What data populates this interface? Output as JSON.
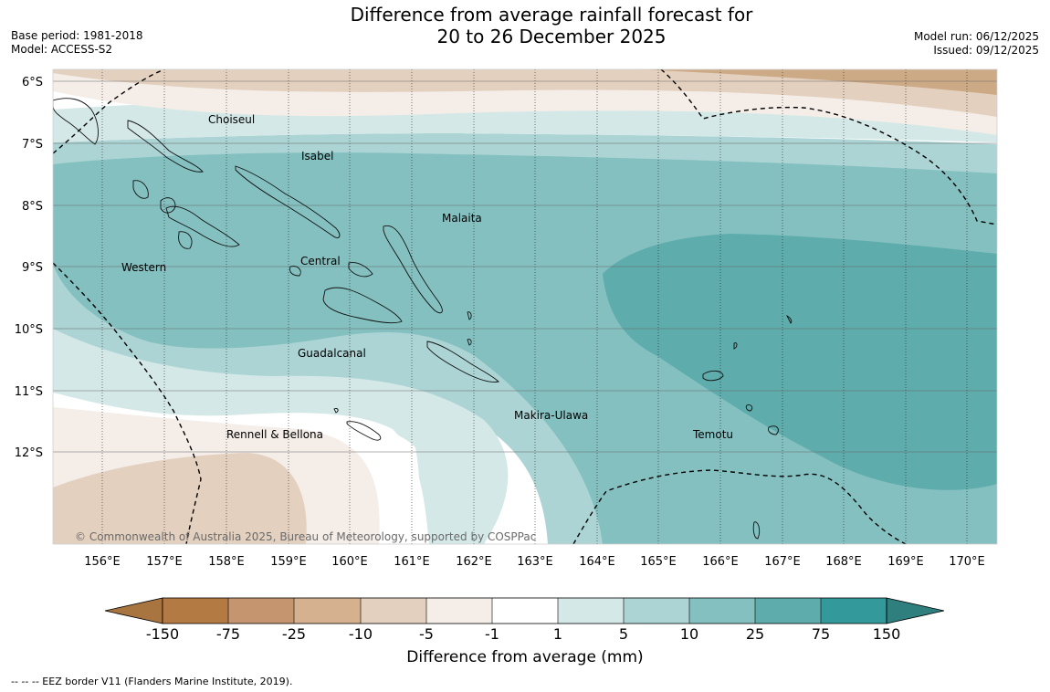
{
  "title": {
    "line1": "Difference from average rainfall forecast for",
    "line2": "20 to 26 December 2025"
  },
  "meta_left": {
    "base_period": "Base period: 1981-2018",
    "model": "Model: ACCESS-S2"
  },
  "meta_right": {
    "model_run": "Model run: 06/12/2025",
    "issued": "Issued: 09/12/2025"
  },
  "map": {
    "lat_labels": [
      "6°S",
      "7°S",
      "8°S",
      "9°S",
      "10°S",
      "11°S",
      "12°S"
    ],
    "lon_labels": [
      "156°E",
      "157°E",
      "158°E",
      "159°E",
      "160°E",
      "161°E",
      "162°E",
      "163°E",
      "164°E",
      "165°E",
      "166°E",
      "167°E",
      "168°E",
      "169°E",
      "170°E"
    ],
    "regions": [
      "Choiseul",
      "Isabel",
      "Malaita",
      "Western",
      "Central",
      "Guadalcanal",
      "Makira-Ulawa",
      "Rennell & Bellona",
      "Temotu"
    ],
    "copyright": "© Commonwealth of Australia 2025, Bureau of Meteorology, supported by COSPPac"
  },
  "legend": {
    "ticks": [
      "-150",
      "-75",
      "-25",
      "-10",
      "-5",
      "-1",
      "1",
      "5",
      "10",
      "25",
      "75",
      "150"
    ],
    "colors": [
      "#a87540",
      "#b47a44",
      "#c4956e",
      "#d5b18f",
      "#e3d0bf",
      "#f4ede8",
      "#ffffff",
      "#d5e8e8",
      "#acd4d4",
      "#84c0c0",
      "#5eacac",
      "#33999a",
      "#2e7f7d"
    ],
    "label": "Difference from average (mm)"
  },
  "footnote": "--  --  -- EEZ border V11 (Flanders Marine Institute, 2019).",
  "colors": {
    "dry_strong": "#cdaa86",
    "dry_mid": "#e3d0bf",
    "dry_light": "#f4ede8",
    "neutral": "#ffffff",
    "wet_1": "#d5e8e8",
    "wet_2": "#acd4d4",
    "wet_3": "#84c0c0",
    "wet_4": "#5eacac"
  }
}
